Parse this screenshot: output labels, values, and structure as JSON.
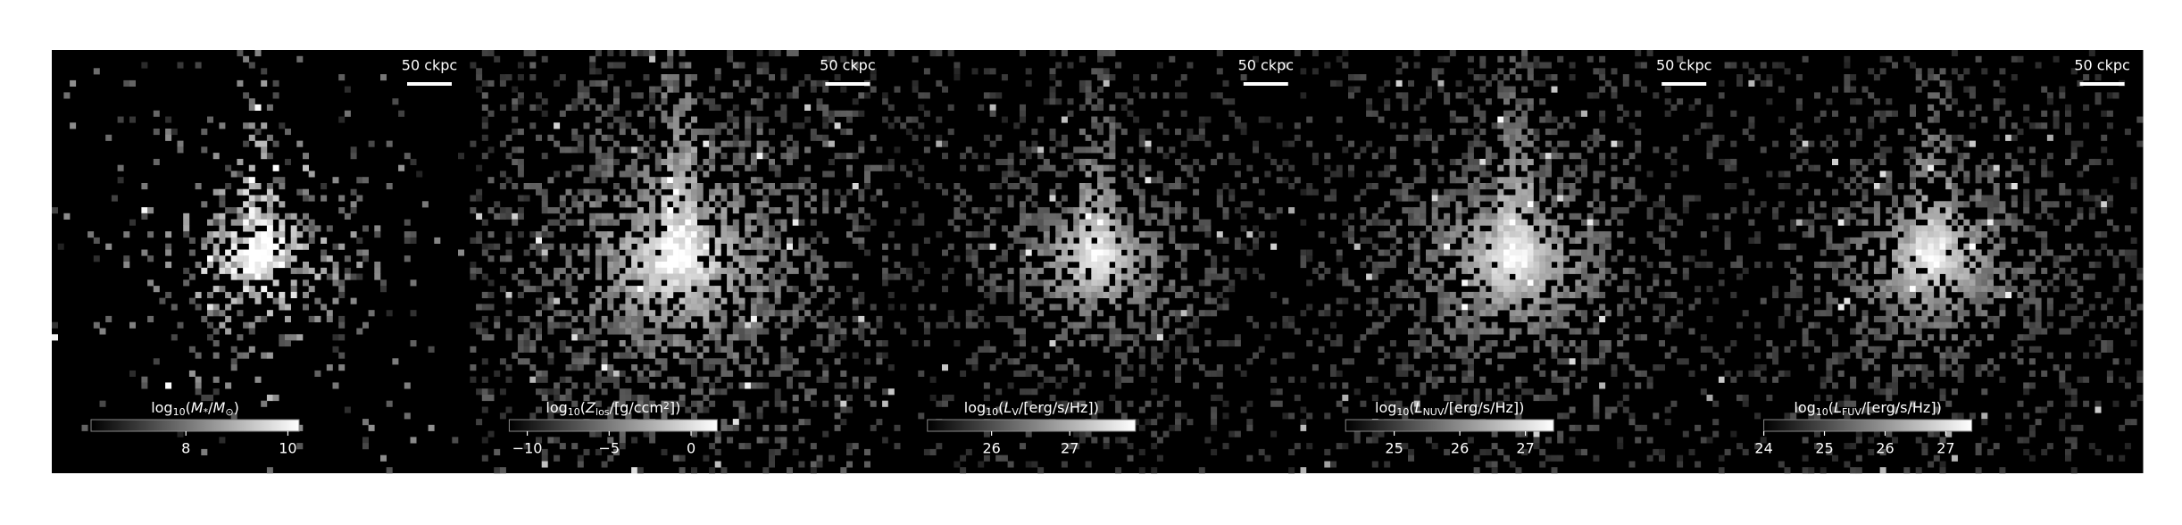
{
  "chart_data": {
    "type": "image-grid",
    "panels": [
      {
        "scale_bar": "50 ckpc",
        "colorbar": {
          "label": [
            {
              "t": "log"
            },
            {
              "t": "10",
              "sub": true
            },
            {
              "t": "("
            },
            {
              "t": "M",
              "italic": true
            },
            {
              "t": "*",
              "sub": true
            },
            {
              "t": "/"
            },
            {
              "t": "M",
              "italic": true
            },
            {
              "t": "⊙",
              "sub": true
            },
            {
              "t": ")"
            }
          ],
          "lim": [
            6.14,
            10.22
          ],
          "ticks": [
            8,
            10
          ]
        }
      },
      {
        "scale_bar": "50 ckpc",
        "colorbar": {
          "label": [
            {
              "t": "log"
            },
            {
              "t": "10",
              "sub": true
            },
            {
              "t": "("
            },
            {
              "t": "Z",
              "italic": true
            },
            {
              "t": "los",
              "sub": true
            },
            {
              "t": "/[g/ccm"
            },
            {
              "t": "2",
              "sup": true
            },
            {
              "t": "])"
            }
          ],
          "lim": [
            -11.1,
            1.6
          ],
          "ticks": [
            {
              "value": -10,
              "label": "−10"
            },
            {
              "value": -5,
              "label": "−5"
            },
            0
          ]
        }
      },
      {
        "scale_bar": "50 ckpc",
        "colorbar": {
          "label": [
            {
              "t": "log"
            },
            {
              "t": "10",
              "sub": true
            },
            {
              "t": "("
            },
            {
              "t": "L",
              "italic": true
            },
            {
              "t": "V",
              "sub": true
            },
            {
              "t": "/[erg/s/Hz])"
            }
          ],
          "lim": [
            25.18,
            27.84
          ],
          "ticks": [
            26,
            27
          ]
        }
      },
      {
        "scale_bar": "50 ckpc",
        "colorbar": {
          "label": [
            {
              "t": "log"
            },
            {
              "t": "10",
              "sub": true
            },
            {
              "t": "("
            },
            {
              "t": "L",
              "italic": true
            },
            {
              "t": "NUV",
              "sub": true
            },
            {
              "t": "/[erg/s/Hz])"
            }
          ],
          "lim": [
            24.26,
            27.43
          ],
          "ticks": [
            25,
            26,
            27
          ]
        }
      },
      {
        "scale_bar": "50 ckpc",
        "colorbar": {
          "label": [
            {
              "t": "log"
            },
            {
              "t": "10",
              "sub": true
            },
            {
              "t": "("
            },
            {
              "t": "L",
              "italic": true
            },
            {
              "t": "FUV",
              "sub": true
            },
            {
              "t": "/[erg/s/Hz])"
            }
          ],
          "lim": [
            24.0,
            27.43
          ],
          "ticks": [
            24,
            25,
            26,
            27
          ]
        }
      }
    ]
  }
}
